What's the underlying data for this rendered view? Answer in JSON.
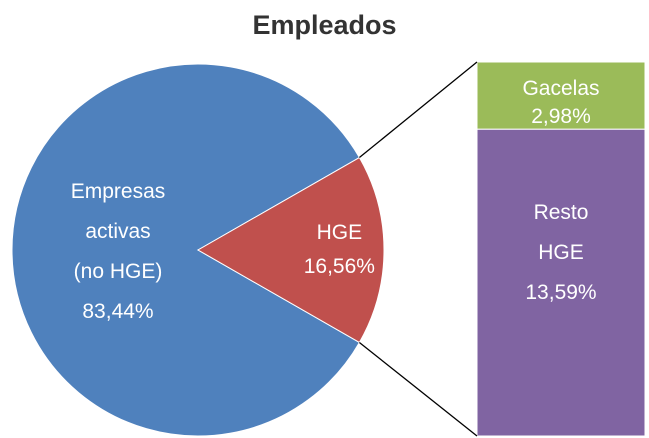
{
  "chart_data": {
    "type": "pie-of-bar",
    "title": "Empleados",
    "categories": [
      "Empresas activas (no HGE)",
      "HGE"
    ],
    "values": [
      83.44,
      16.56
    ],
    "value_labels": [
      "83,44%",
      "16,56%"
    ],
    "colors": [
      "#4f81bd",
      "#c0504d"
    ],
    "bar": {
      "categories": [
        "Gacelas",
        "Resto HGE"
      ],
      "values": [
        2.98,
        13.59
      ],
      "value_labels": [
        "2,98%",
        "13,59%"
      ],
      "colors": [
        "#9bbb59",
        "#8064a2"
      ]
    }
  }
}
